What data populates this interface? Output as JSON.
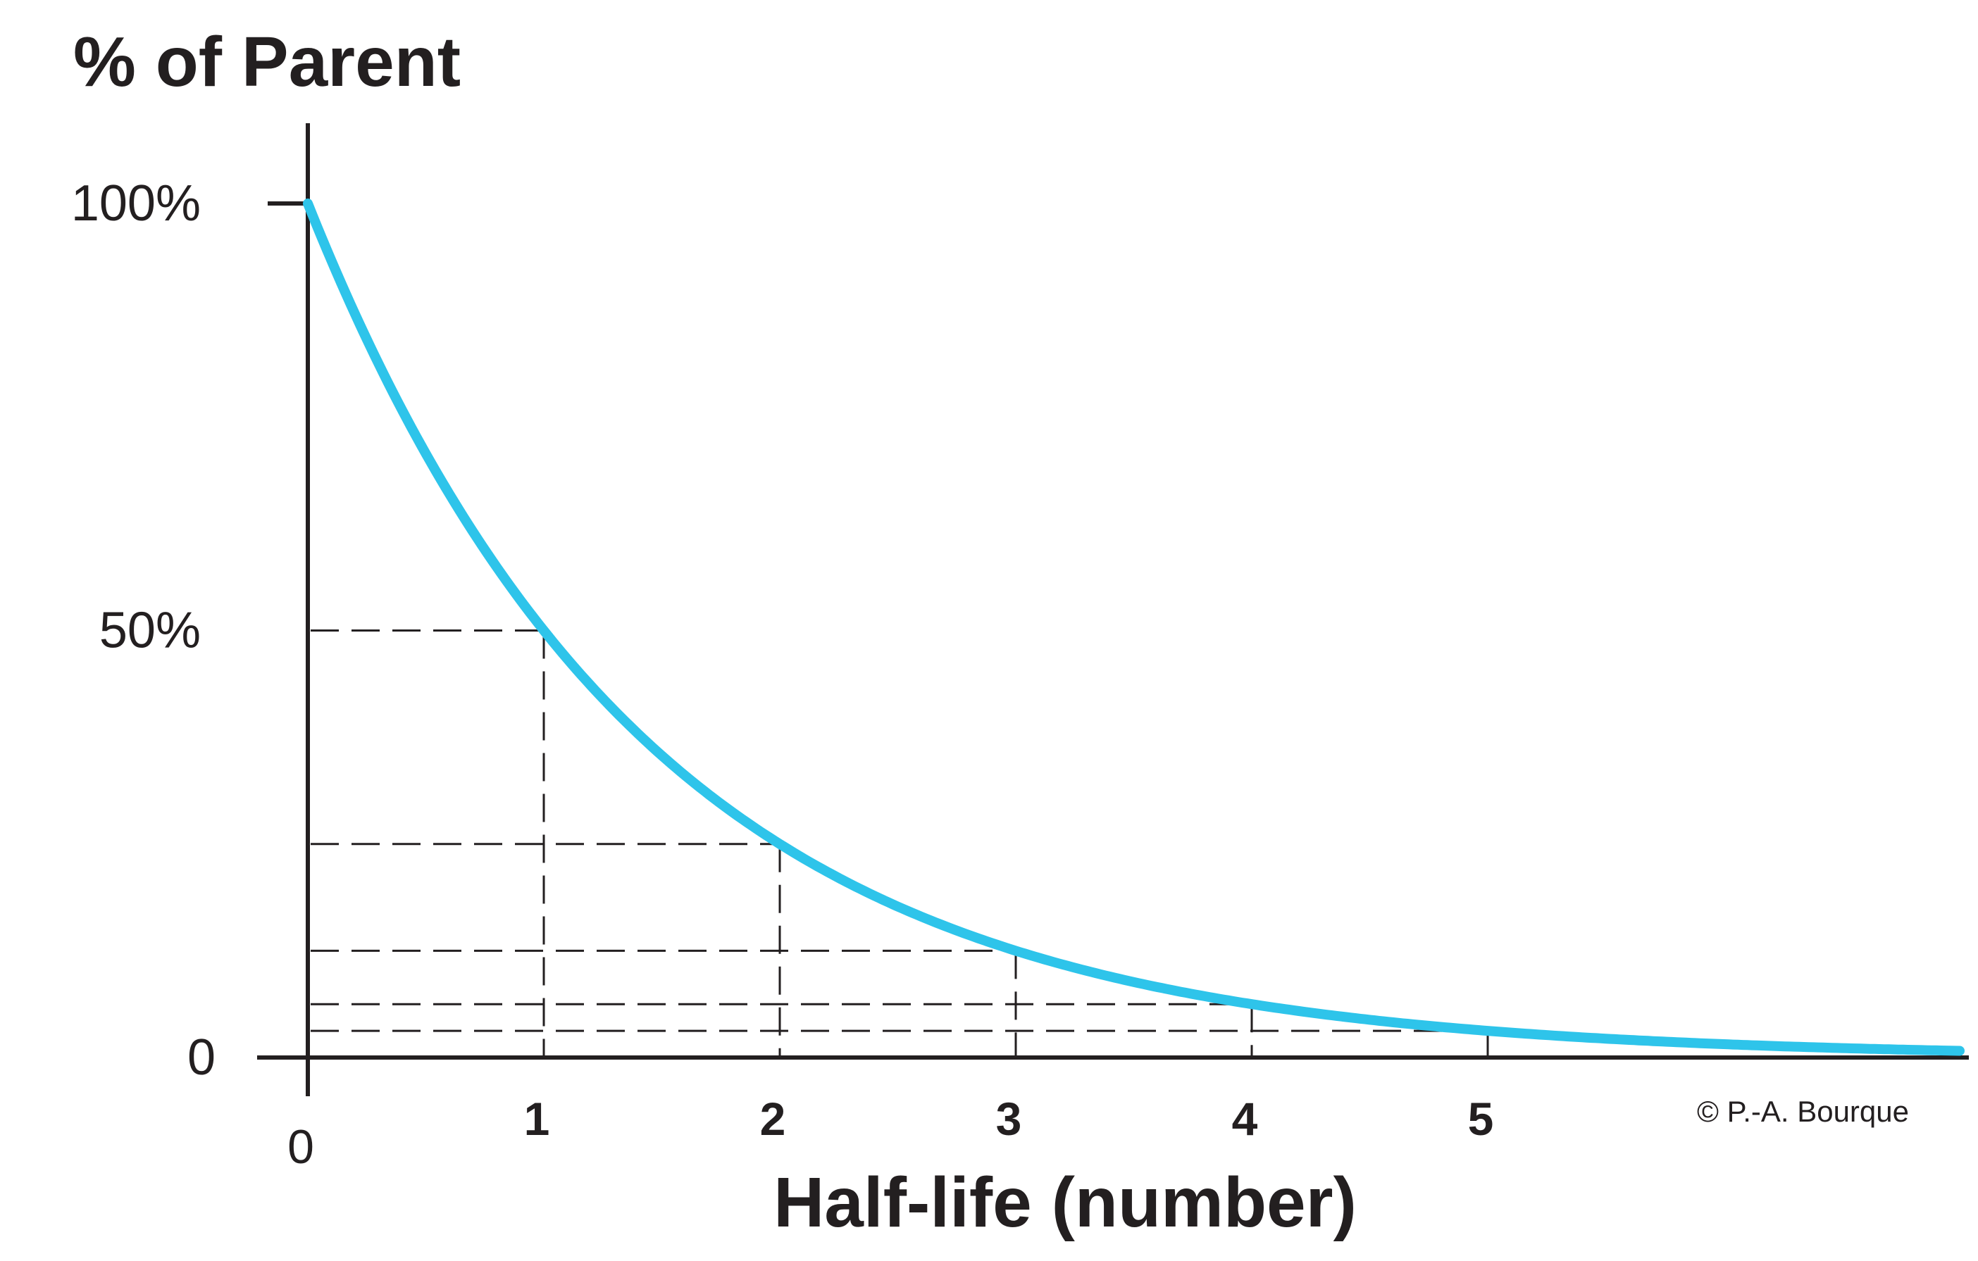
{
  "chart_data": {
    "type": "line",
    "ylabel": "% of Parent",
    "xlabel": "Half-life (number)",
    "credit": "© P.-A. Bourque",
    "y_tick_labels": [
      "0",
      "50%",
      "100%"
    ],
    "y_tick_values": [
      0,
      50,
      100
    ],
    "x_tick_labels": [
      "0",
      "1",
      "2",
      "3",
      "4",
      "5"
    ],
    "x_tick_values": [
      0,
      1,
      2,
      3,
      4,
      5
    ],
    "xlim": [
      0,
      7
    ],
    "ylim": [
      0,
      100
    ],
    "grid": false,
    "series": [
      {
        "x": [
          0,
          0.25,
          0.5,
          0.75,
          1,
          1.25,
          1.5,
          1.75,
          2,
          2.25,
          2.5,
          2.75,
          3,
          3.25,
          3.5,
          3.75,
          4,
          4.25,
          4.5,
          4.75,
          5,
          5.25,
          5.5,
          5.75,
          6,
          6.25,
          6.5,
          6.75,
          7
        ],
        "y": [
          100,
          84.1,
          70.7,
          59.5,
          50,
          42.0,
          35.4,
          29.7,
          25,
          21.0,
          17.7,
          14.9,
          12.5,
          10.5,
          8.8,
          7.4,
          6.25,
          5.3,
          4.4,
          3.7,
          3.1,
          2.6,
          2.2,
          1.9,
          1.6,
          1.3,
          1.1,
          0.9,
          0.8
        ]
      }
    ],
    "half_life_points": [
      {
        "x": 1,
        "y": 50
      },
      {
        "x": 2,
        "y": 25
      },
      {
        "x": 3,
        "y": 12.5
      },
      {
        "x": 4,
        "y": 6.25
      },
      {
        "x": 5,
        "y": 3.125
      }
    ],
    "colors": {
      "curve": "#2ec4ea",
      "axis": "#231f20",
      "text": "#231f20"
    }
  }
}
